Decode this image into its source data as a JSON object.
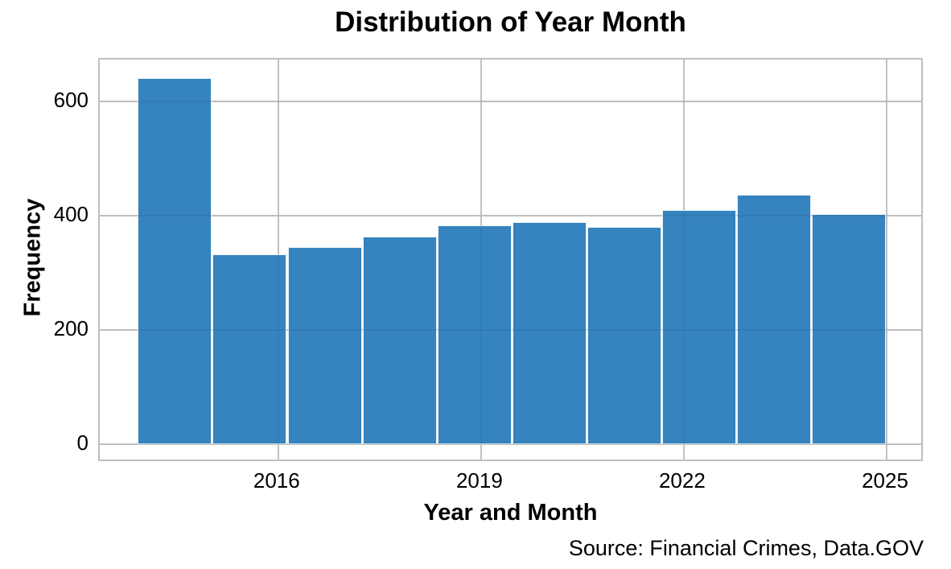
{
  "figure": {
    "title": "Distribution of Year Month",
    "source_note": "Source: Financial Crimes, Data.GOV"
  },
  "colors": {
    "bar_fill": "#3583bf",
    "gridline": "#c9c9c9",
    "plot_border": "#bfbfbf",
    "text": "#000000"
  },
  "chart_data": {
    "type": "bar",
    "subtype": "histogram",
    "title": "Distribution of Year Month",
    "xlabel": "Year and Month",
    "ylabel": "Frequency",
    "bins": {
      "start": 2013.917,
      "width": 1.1083,
      "count": 10
    },
    "values": [
      641,
      332,
      345,
      364,
      383,
      389,
      381,
      410,
      437,
      403
    ],
    "xticks": [
      2016,
      2019,
      2022,
      2025
    ],
    "yticks": [
      0,
      200,
      400,
      600
    ],
    "xlim": [
      2013.36,
      2025.56
    ],
    "ylim": [
      -32,
      673
    ],
    "grid": true,
    "legend": false,
    "annotation": "Source: Financial Crimes, Data.GOV"
  }
}
